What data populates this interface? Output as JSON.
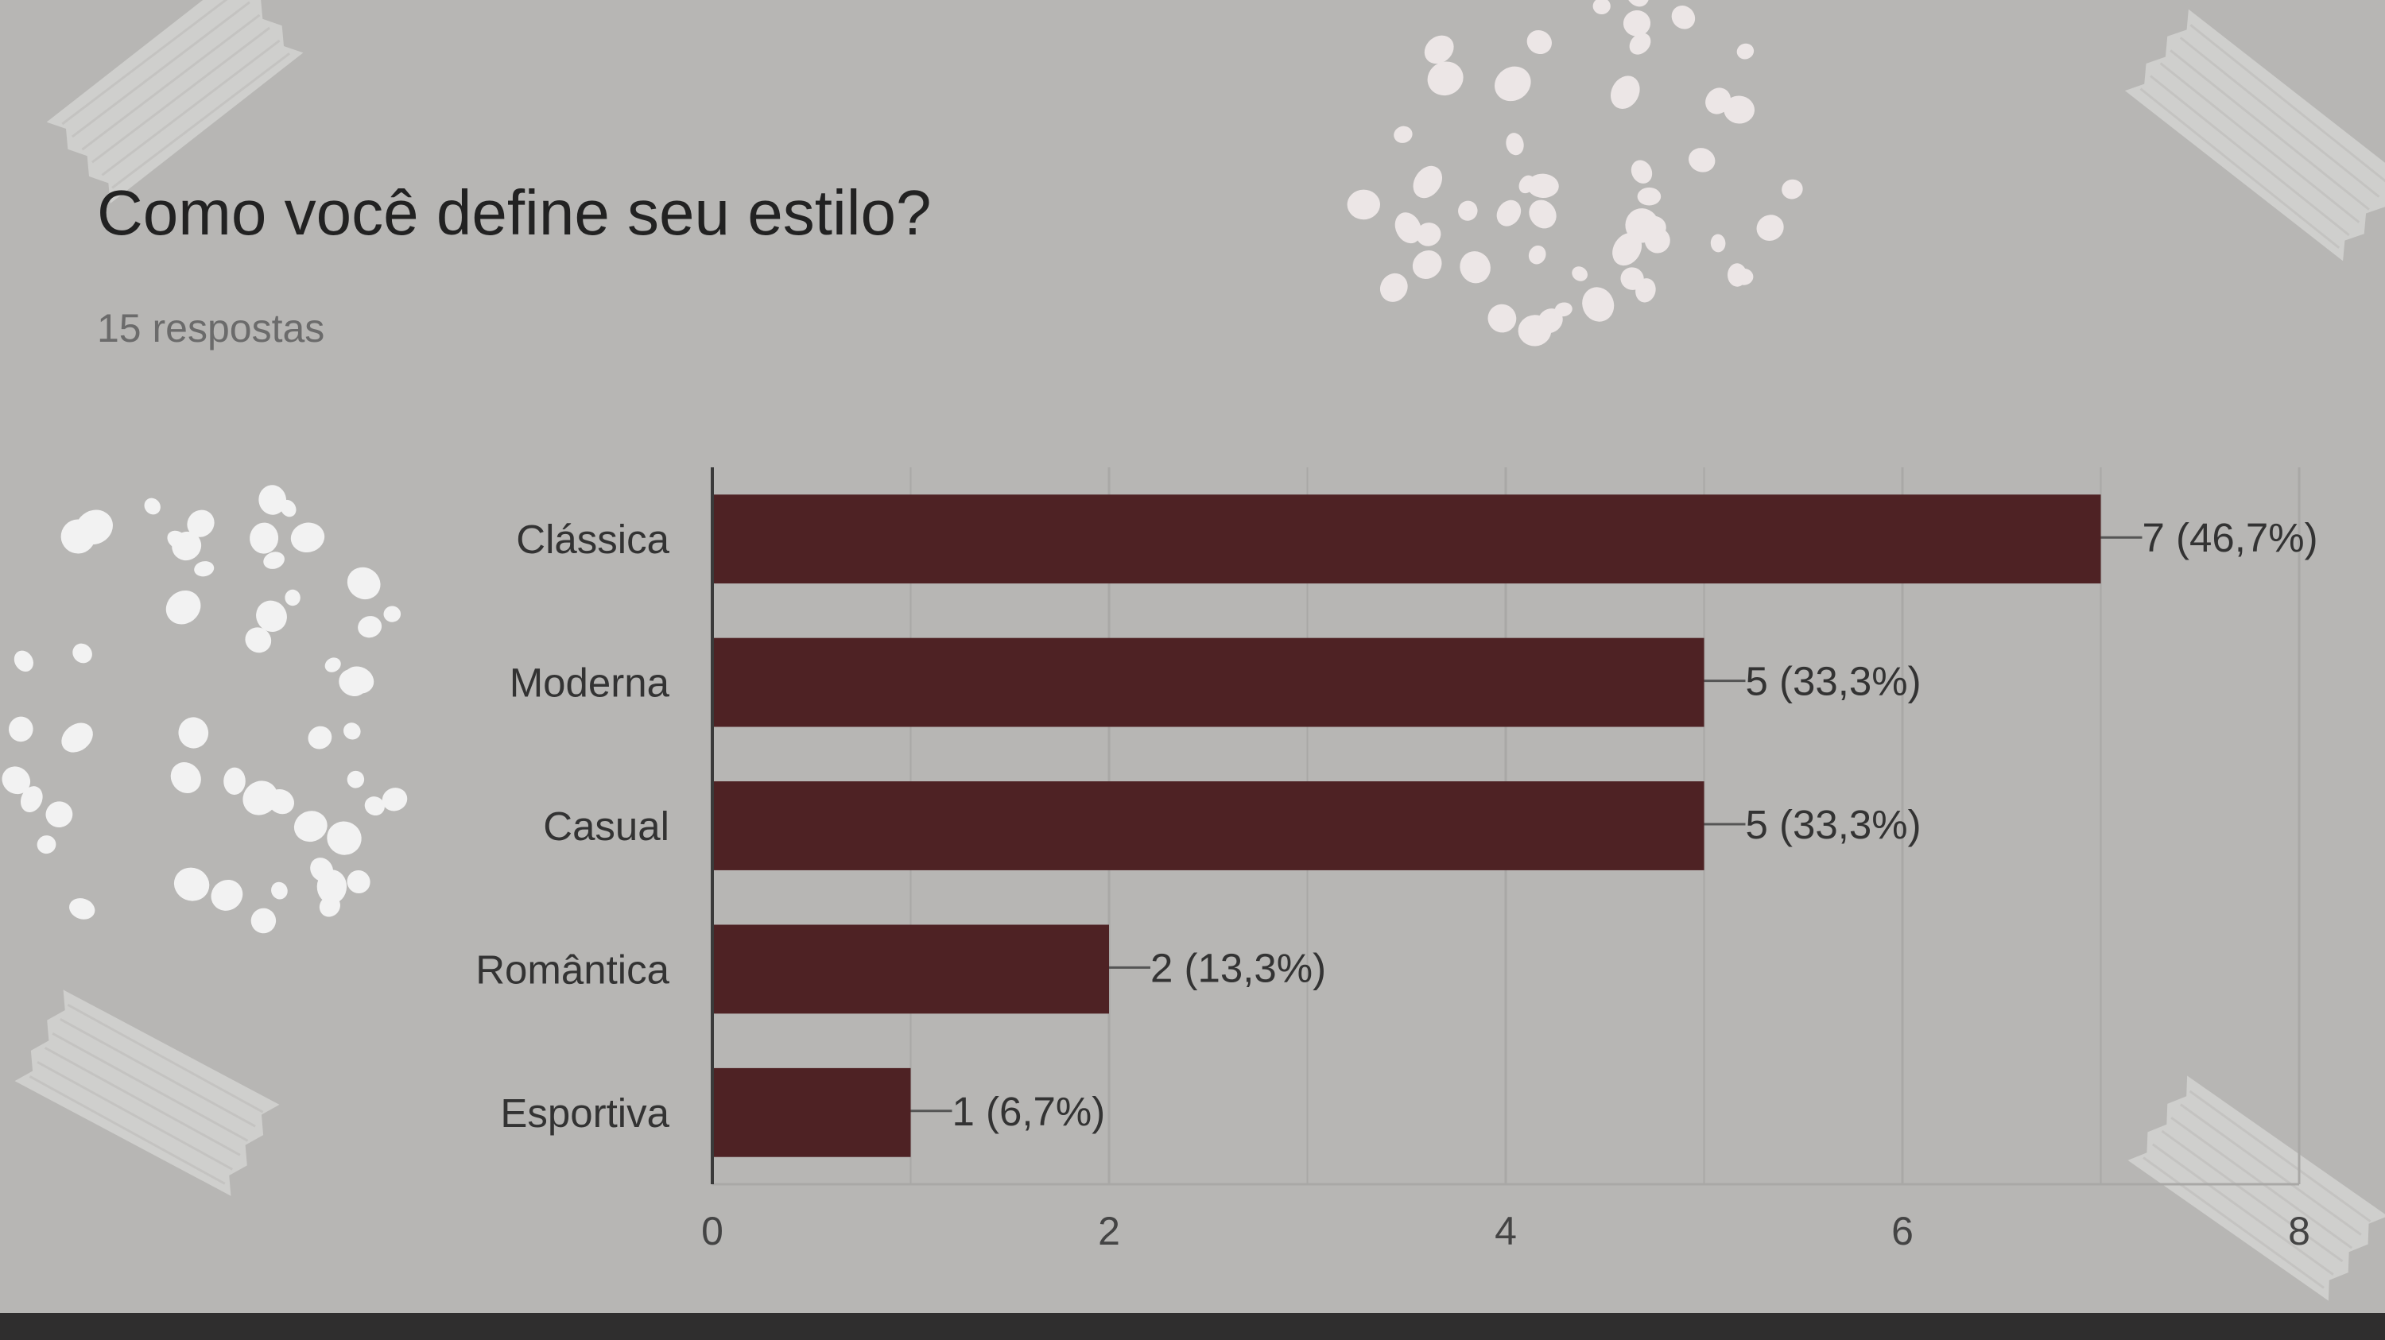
{
  "page": {
    "background_color": "#b7b6b4",
    "footer_bar_color": "#2f2e2e"
  },
  "decorations": {
    "icons": [
      "tape-icon",
      "dots-pattern-icon"
    ]
  },
  "chart_data": {
    "type": "bar",
    "orientation": "horizontal",
    "title": "Como você define seu estilo?",
    "subtitle": "15 respostas",
    "categories": [
      "Clássica",
      "Moderna",
      "Casual",
      "Romântica",
      "Esportiva"
    ],
    "values": [
      7,
      5,
      5,
      2,
      1
    ],
    "data_labels": [
      "7 (46,7%)",
      "5 (33,3%)",
      "5 (33,3%)",
      "2 (13,3%)",
      "1 (6,7%)"
    ],
    "x_ticks": [
      0,
      2,
      4,
      6,
      8
    ],
    "xlim": [
      0,
      8
    ],
    "xlabel": "",
    "ylabel": "",
    "grid": true,
    "bar_color": "#4e2224",
    "grid_color": "#a9a8a6",
    "axis_color": "#3a3a3a"
  }
}
